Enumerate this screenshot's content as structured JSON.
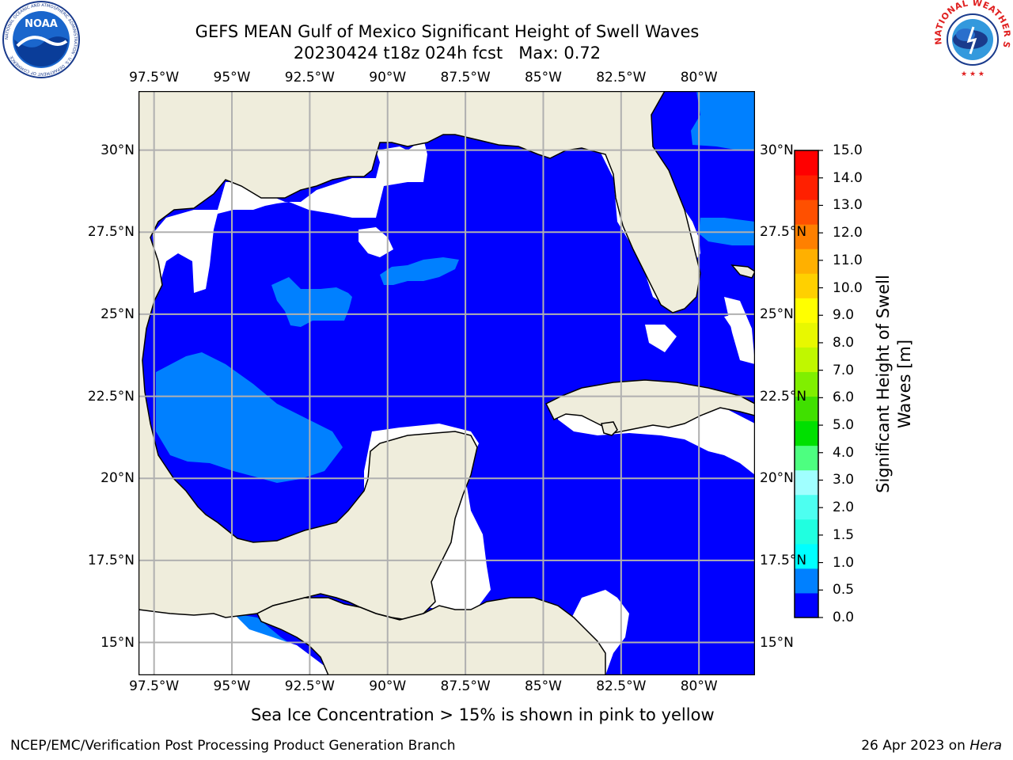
{
  "header": {
    "title_line1": "GEFS MEAN Gulf of Mexico Significant Height of Swell Waves",
    "title_line2": "20230424 t18z 024h fcst   Max: 0.72"
  },
  "map": {
    "lon_ticks": [
      "97.5°W",
      "95°W",
      "92.5°W",
      "90°W",
      "87.5°W",
      "85°W",
      "82.5°W",
      "80°W"
    ],
    "lat_ticks": [
      "30°N",
      "27.5°N",
      "25°N",
      "22.5°N",
      "20°N",
      "17.5°N",
      "15°N"
    ],
    "lon_values": [
      -97.5,
      -95,
      -92.5,
      -90,
      -87.5,
      -85,
      -82.5,
      -80
    ],
    "lat_values": [
      30,
      27.5,
      25,
      22.5,
      20,
      17.5,
      15
    ],
    "lon_range": [
      -98,
      -78.2
    ],
    "lat_range": [
      14,
      31.8
    ],
    "colors": {
      "land": "#efeddc",
      "ocean_low": "#0000ff",
      "ocean_mid": "#0080ff",
      "grid": "#b0b0b0"
    }
  },
  "colorbar": {
    "label": "Significant Height of Swell Waves [m]",
    "tick_labels": [
      "0.0",
      "0.5",
      "1.0",
      "1.5",
      "2.0",
      "3.0",
      "4.0",
      "5.0",
      "6.0",
      "7.0",
      "8.0",
      "9.0",
      "10.0",
      "11.0",
      "12.0",
      "13.0",
      "14.0",
      "15.0"
    ],
    "colors": [
      "#0000ff",
      "#0080ff",
      "#00ffff",
      "#20ffe0",
      "#4dfff0",
      "#a0ffff",
      "#4dff80",
      "#00e000",
      "#40e000",
      "#80ef00",
      "#c0f700",
      "#e8f800",
      "#ffff00",
      "#ffd000",
      "#ffb000",
      "#ff8000",
      "#ff5000",
      "#ff2000",
      "#ff0000"
    ]
  },
  "note": "Sea Ice Concentration > 15% is shown in pink to yellow",
  "footer": {
    "left": "NCEP/EMC/Verification Post Processing Product Generation Branch",
    "right_prefix": "26 Apr 2023 on ",
    "right_host": "Hera"
  },
  "logos": {
    "noaa_text": "NOAA",
    "noaa_ring": "NATIONAL OCEANIC AND ATMOSPHERIC ADMINISTRATION · U.S. DEPARTMENT OF COMMERCE",
    "nws_ring": "NATIONAL WEATHER SERVICE"
  }
}
